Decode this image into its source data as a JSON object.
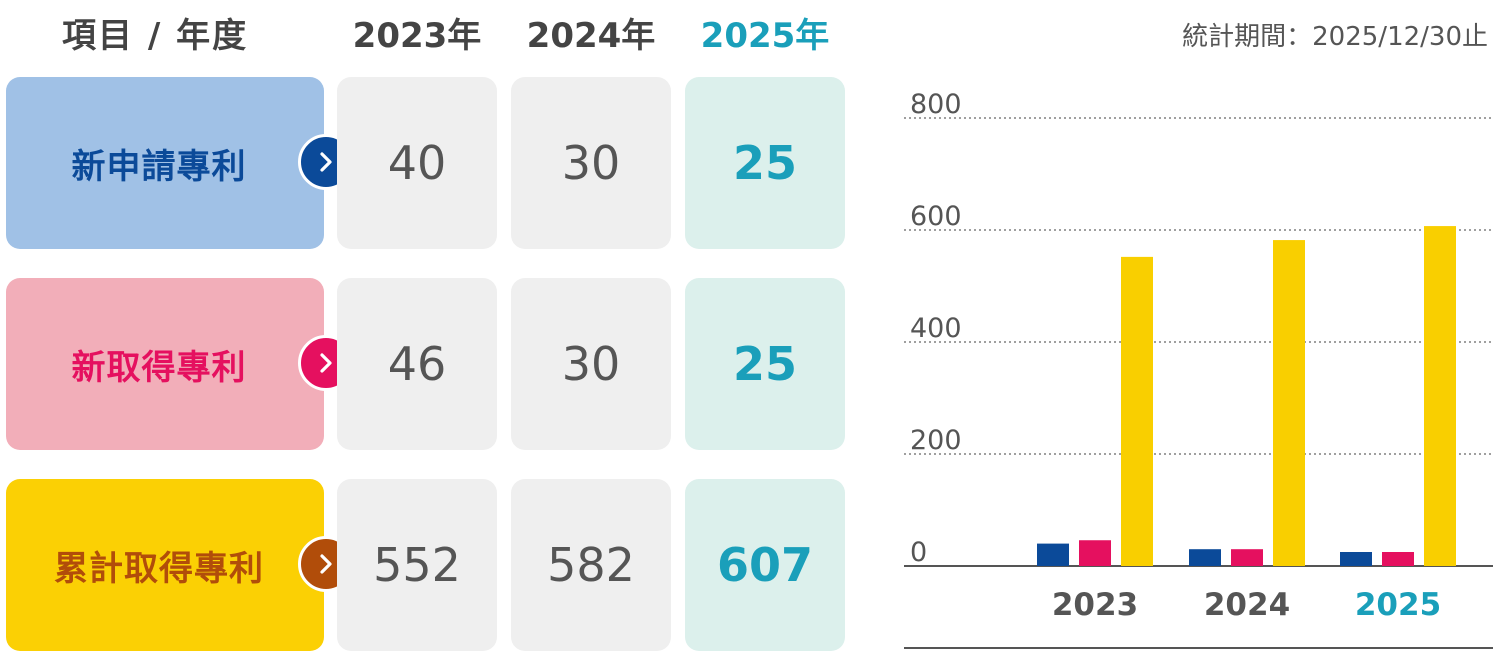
{
  "header": {
    "item_label": "項目 / 年度"
  },
  "table": {
    "years": [
      "2023年",
      "2024年",
      "2025年"
    ],
    "rows": [
      {
        "label": "新申請專利",
        "values": [
          "40",
          "30",
          "25"
        ]
      },
      {
        "label": "新取得專利",
        "values": [
          "46",
          "30",
          "25"
        ]
      },
      {
        "label": "累計取得專利",
        "values": [
          "552",
          "582",
          "607"
        ]
      }
    ]
  },
  "period_label": "統計期間：2025/12/30止",
  "colors": {
    "blue": "#0b4a99",
    "pink": "#e5105f",
    "gold": "#f9cf00",
    "blue_bg": "#a0c1e6",
    "pink_bg": "#f2aeb9",
    "gold_bg": "#fbd004",
    "gold_text": "#b14d0a",
    "gold_arrow": "#b14d0a",
    "current": "#1a9fba"
  },
  "chart_data": {
    "type": "bar",
    "categories": [
      "2023",
      "2024",
      "2025"
    ],
    "series": [
      {
        "values": [
          40,
          30,
          25
        ]
      },
      {
        "values": [
          46,
          30,
          25
        ]
      },
      {
        "values": [
          552,
          582,
          607
        ]
      }
    ],
    "ylim": [
      0,
      800
    ],
    "yticks": [
      "0",
      "200",
      "400",
      "600",
      "800"
    ],
    "grid": true
  }
}
